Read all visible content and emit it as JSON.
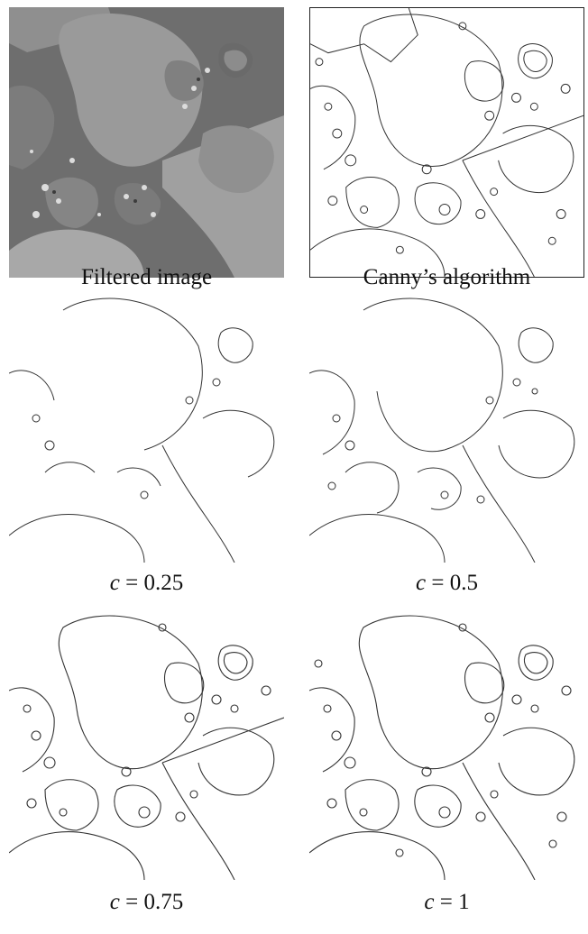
{
  "figure": {
    "panels": [
      {
        "id": "filtered",
        "caption": "Filtered image",
        "kind": "grayscale"
      },
      {
        "id": "canny",
        "caption": "Canny’s algorithm",
        "kind": "edges"
      },
      {
        "id": "c025",
        "caption_var": "c",
        "caption_eq": " = ",
        "caption_val": "0.25",
        "kind": "edges"
      },
      {
        "id": "c05",
        "caption_var": "c",
        "caption_eq": " = ",
        "caption_val": "0.5",
        "kind": "edges"
      },
      {
        "id": "c075",
        "caption_var": "c",
        "caption_eq": " = ",
        "caption_val": "0.75",
        "kind": "edges"
      },
      {
        "id": "c1",
        "caption_var": "c",
        "caption_eq": " = ",
        "caption_val": "1",
        "kind": "edges"
      }
    ]
  },
  "colors": {
    "background": "#ffffff",
    "edge": "#333333",
    "gray_dark": "#5a5a5a",
    "gray_mid": "#888888",
    "gray_light": "#b0b0b0"
  }
}
